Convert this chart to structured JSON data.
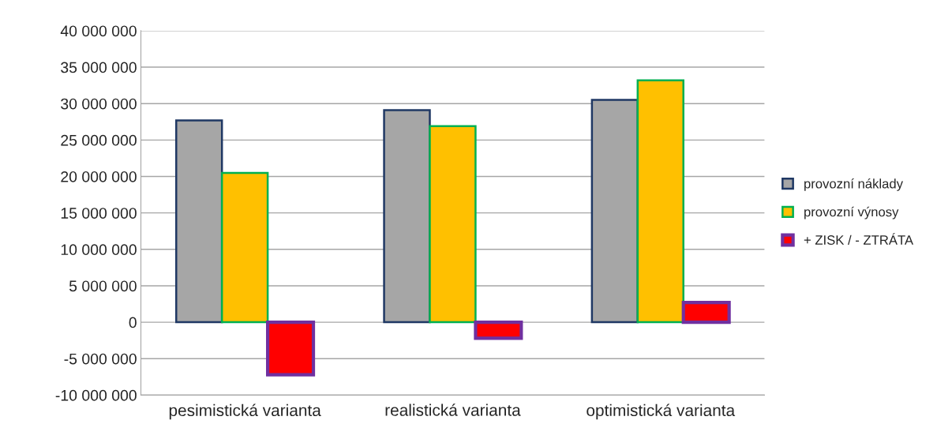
{
  "chart_data": {
    "type": "bar",
    "categories": [
      "pesimistická varianta",
      "realistická varianta",
      "optimistická varianta"
    ],
    "series": [
      {
        "name": "provozní náklady",
        "color": "#a6a6a6",
        "values": [
          27700000,
          29100000,
          30500000
        ]
      },
      {
        "name": "provozní výnosy",
        "color": "#ffc000",
        "values": [
          20500000,
          26900000,
          33200000
        ]
      },
      {
        "name": "+ ZISK / - ZTRÁTA",
        "color": "#ff0000",
        "values": [
          -7200000,
          -2200000,
          2700000
        ]
      }
    ],
    "ylim": [
      -10000000,
      40000000
    ],
    "yticks": [
      {
        "value": -10000000,
        "label": "-10 000 000"
      },
      {
        "value": -5000000,
        "label": "-5 000 000"
      },
      0,
      {
        "value": 5000000,
        "label": "5 000 000"
      },
      {
        "value": 10000000,
        "label": "10 000 000"
      },
      {
        "value": 15000000,
        "label": "15 000 000"
      },
      {
        "value": 20000000,
        "label": "20 000 000"
      },
      {
        "value": 25000000,
        "label": "25 000 000"
      },
      {
        "value": 30000000,
        "label": "30 000 000"
      },
      {
        "value": 35000000,
        "label": "35 000 000"
      },
      {
        "value": 40000000,
        "label": "40 000 000"
      }
    ],
    "grid": "y",
    "legend": "right"
  }
}
